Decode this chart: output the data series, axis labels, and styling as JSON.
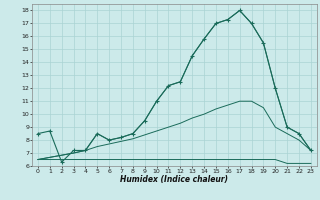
{
  "xlabel": "Humidex (Indice chaleur)",
  "xlim": [
    -0.5,
    23.5
  ],
  "ylim": [
    6,
    18.5
  ],
  "yticks": [
    6,
    7,
    8,
    9,
    10,
    11,
    12,
    13,
    14,
    15,
    16,
    17,
    18
  ],
  "xticks": [
    0,
    1,
    2,
    3,
    4,
    5,
    6,
    7,
    8,
    9,
    10,
    11,
    12,
    13,
    14,
    15,
    16,
    17,
    18,
    19,
    20,
    21,
    22,
    23
  ],
  "bg_color": "#cceaea",
  "line_color": "#1a6b5a",
  "grid_color": "#aad4d4",
  "line1_x": [
    0,
    1,
    2,
    3,
    4,
    5,
    6,
    7,
    8,
    9,
    10,
    11,
    12,
    13,
    14,
    15,
    16,
    17,
    18,
    19,
    20,
    21,
    22,
    23
  ],
  "line1_y": [
    8.5,
    8.7,
    6.3,
    7.2,
    7.2,
    8.5,
    8.0,
    8.2,
    8.5,
    9.5,
    11.0,
    12.2,
    12.5,
    14.5,
    15.8,
    17.0,
    17.3,
    18.0,
    17.0,
    15.5,
    12.0,
    9.0,
    8.5,
    7.2
  ],
  "line2_x": [
    0,
    1,
    2,
    3,
    4,
    5,
    6,
    7,
    8,
    9,
    10,
    11,
    12,
    13,
    14,
    15,
    16,
    17,
    18,
    19,
    20,
    21,
    22,
    23
  ],
  "line2_y": [
    6.5,
    6.5,
    6.5,
    6.5,
    6.5,
    6.5,
    6.5,
    6.5,
    6.5,
    6.5,
    6.5,
    6.5,
    6.5,
    6.5,
    6.5,
    6.5,
    6.5,
    6.5,
    6.5,
    6.5,
    6.5,
    6.2,
    6.2,
    6.2
  ],
  "line3_x": [
    0,
    3,
    4,
    5,
    6,
    7,
    8,
    9,
    10,
    11,
    12,
    13,
    14,
    15,
    16,
    17,
    18,
    19,
    20,
    21,
    22,
    23
  ],
  "line3_y": [
    6.5,
    7.0,
    7.2,
    7.5,
    7.7,
    7.9,
    8.1,
    8.4,
    8.7,
    9.0,
    9.3,
    9.7,
    10.0,
    10.4,
    10.7,
    11.0,
    11.0,
    10.5,
    9.0,
    8.5,
    8.0,
    7.2
  ],
  "line4_x": [
    0,
    3,
    4,
    5,
    6,
    7,
    8,
    9,
    10,
    11,
    12,
    13,
    14,
    15,
    16,
    17,
    18,
    19,
    20,
    21,
    22,
    23
  ],
  "line4_y": [
    6.5,
    7.0,
    7.2,
    8.5,
    8.0,
    8.2,
    8.5,
    9.5,
    11.0,
    12.2,
    12.5,
    14.5,
    15.8,
    17.0,
    17.3,
    18.0,
    17.0,
    15.5,
    12.0,
    9.0,
    8.5,
    7.2
  ]
}
